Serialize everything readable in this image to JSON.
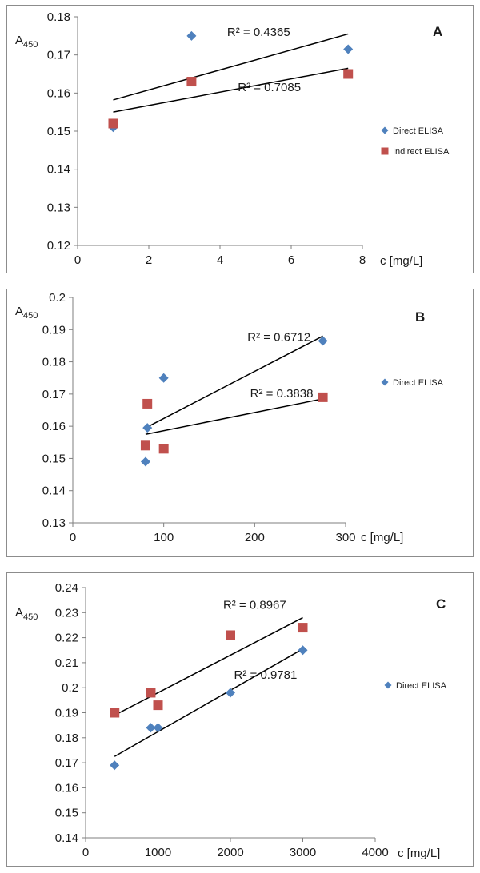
{
  "colors": {
    "direct": "#4f81bd",
    "indirect": "#c0504d",
    "axis": "#7f7f7f",
    "trend": "#000000"
  },
  "chart_data": [
    {
      "type": "scatter",
      "panel_label": "A",
      "ylabel_main": "A",
      "ylabel_sub": "450",
      "xlabel": "c [mg/L]",
      "xlim": [
        0,
        8
      ],
      "ylim": [
        0.12,
        0.18
      ],
      "xticks": [
        0,
        2,
        4,
        6,
        8
      ],
      "yticks": [
        0.12,
        0.13,
        0.14,
        0.15,
        0.16,
        0.17,
        0.18
      ],
      "ytick_labels": [
        "0.12",
        "0.13",
        "0.14",
        "0.15",
        "0.16",
        "0.17",
        "0.18"
      ],
      "grid": false,
      "series": [
        {
          "name": "Direct ELISA",
          "marker": "diamond",
          "x": [
            1,
            3.2,
            7.6
          ],
          "y": [
            0.151,
            0.175,
            0.1715
          ],
          "trendline": {
            "x": [
              1,
              7.6
            ],
            "y": [
              0.1582,
              0.1755
            ]
          },
          "r2_label": "R² = 0.4365",
          "r2_at": [
            4.2,
            0.175
          ]
        },
        {
          "name": "Indirect ELISA",
          "marker": "square",
          "x": [
            1,
            3.2,
            7.6
          ],
          "y": [
            0.152,
            0.163,
            0.165
          ],
          "trendline": {
            "x": [
              1,
              7.6
            ],
            "y": [
              0.155,
              0.1665
            ]
          },
          "r2_label": "R² = 0.7085",
          "r2_at": [
            4.5,
            0.1605
          ]
        }
      ],
      "legend": [
        "Direct ELISA",
        "Indirect ELISA"
      ],
      "legend_position": "right"
    },
    {
      "type": "scatter",
      "panel_label": "B",
      "ylabel_main": "A",
      "ylabel_sub": "450",
      "xlabel": "c [mg/L]",
      "xlim": [
        0,
        300
      ],
      "ylim": [
        0.13,
        0.2
      ],
      "xticks": [
        0,
        100,
        200,
        300
      ],
      "yticks": [
        0.13,
        0.14,
        0.15,
        0.16,
        0.17,
        0.18,
        0.19,
        0.2
      ],
      "ytick_labels": [
        "0.13",
        "0.14",
        "0.15",
        "0.16",
        "0.17",
        "0.18",
        "0.19",
        "0.2"
      ],
      "grid": false,
      "series": [
        {
          "name": "Direct ELISA",
          "marker": "diamond",
          "x": [
            80,
            82,
            100,
            275
          ],
          "y": [
            0.149,
            0.1595,
            0.175,
            0.1865
          ],
          "trendline": {
            "x": [
              80,
              275
            ],
            "y": [
              0.1595,
              0.188
            ]
          },
          "r2_label": "R² = 0.6712",
          "r2_at": [
            192,
            0.1865
          ]
        },
        {
          "name": "",
          "marker": "square",
          "x": [
            80,
            82,
            100,
            275
          ],
          "y": [
            0.154,
            0.167,
            0.153,
            0.169
          ],
          "trendline": {
            "x": [
              80,
              275
            ],
            "y": [
              0.1575,
              0.1685
            ]
          },
          "r2_label": "R² = 0.3838",
          "r2_at": [
            195,
            0.169
          ]
        }
      ],
      "legend": [
        "Direct ELISA"
      ],
      "legend_position": "right"
    },
    {
      "type": "scatter",
      "panel_label": "C",
      "ylabel_main": "A",
      "ylabel_sub": "450",
      "xlabel": "c [mg/L]",
      "xlim": [
        0,
        4000
      ],
      "ylim": [
        0.14,
        0.24
      ],
      "xticks": [
        0,
        1000,
        2000,
        3000,
        4000
      ],
      "yticks": [
        0.14,
        0.15,
        0.16,
        0.17,
        0.18,
        0.19,
        0.2,
        0.21,
        0.22,
        0.23,
        0.24
      ],
      "ytick_labels": [
        "0.14",
        "0.15",
        "0.16",
        "0.17",
        "0.18",
        "0.19",
        "0.2",
        "0.21",
        "0.22",
        "0.23",
        "0.24"
      ],
      "grid": false,
      "series": [
        {
          "name": "Direct ELISA",
          "marker": "diamond",
          "x": [
            400,
            900,
            1000,
            2000,
            3000
          ],
          "y": [
            0.169,
            0.184,
            0.184,
            0.198,
            0.215
          ],
          "trendline": {
            "x": [
              400,
              3000
            ],
            "y": [
              0.1725,
              0.2155
            ]
          },
          "r2_label": "R² = 0.9781",
          "r2_at": [
            2050,
            0.2035
          ]
        },
        {
          "name": "",
          "marker": "square",
          "x": [
            400,
            900,
            1000,
            2000,
            3000
          ],
          "y": [
            0.19,
            0.198,
            0.193,
            0.221,
            0.224
          ],
          "trendline": {
            "x": [
              400,
              3000
            ],
            "y": [
              0.189,
              0.228
            ]
          },
          "r2_label": "R² = 0.8967",
          "r2_at": [
            1900,
            0.2315
          ]
        }
      ],
      "legend": [
        "Direct ELISA"
      ],
      "legend_position": "right"
    }
  ]
}
